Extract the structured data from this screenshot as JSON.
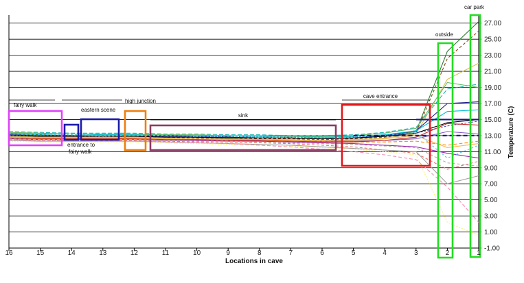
{
  "chart_data": {
    "type": "line",
    "title": "",
    "xlabel": "Locations in cave",
    "ylabel": "Temperature (C)",
    "ylim": [
      -1,
      28
    ],
    "y_ticks": [
      "27.00",
      "25.00",
      "23.00",
      "21.00",
      "19.00",
      "17.00",
      "15.00",
      "13.00",
      "11.00",
      "9.00",
      "7.00",
      "5.00",
      "3.00",
      "1.00",
      "-1.00"
    ],
    "y_tick_values": [
      27,
      25,
      23,
      21,
      19,
      17,
      15,
      13,
      11,
      9,
      7,
      5,
      3,
      1,
      -1
    ],
    "y_axis_side": "right",
    "grid": true,
    "legend": "none",
    "categories": [
      "16",
      "15",
      "14",
      "13",
      "12",
      "11",
      "10",
      "9",
      "8",
      "7",
      "6",
      "5",
      "4",
      "3",
      "2",
      "1"
    ],
    "series": [
      {
        "color": "#2e7d32",
        "values": [
          13.2,
          13.1,
          13.0,
          13.0,
          13.0,
          12.9,
          12.8,
          12.8,
          12.7,
          12.7,
          12.6,
          12.7,
          12.9,
          13.5,
          23.5,
          27.2
        ]
      },
      {
        "color": "#8b4513",
        "values": [
          13.0,
          12.9,
          12.9,
          12.8,
          12.9,
          12.8,
          12.7,
          12.7,
          12.6,
          12.6,
          12.5,
          12.6,
          12.8,
          13.3,
          22.6,
          26.0
        ]
      },
      {
        "color": "#d4c24a",
        "values": [
          12.9,
          12.8,
          12.8,
          12.8,
          12.8,
          12.7,
          12.6,
          12.6,
          12.5,
          12.5,
          12.4,
          12.5,
          12.7,
          13.2,
          20.0,
          22.0
        ]
      },
      {
        "color": "#20b2aa",
        "values": [
          13.5,
          13.4,
          13.3,
          13.3,
          13.3,
          13.2,
          13.2,
          13.1,
          13.1,
          13.0,
          13.0,
          13.1,
          13.4,
          14.0,
          18.8,
          19.4
        ]
      },
      {
        "color": "#1a1a8c",
        "values": [
          13.1,
          13.0,
          13.0,
          12.9,
          12.9,
          12.9,
          12.8,
          12.8,
          12.7,
          12.7,
          12.6,
          12.7,
          13.0,
          13.6,
          17.0,
          17.2
        ]
      },
      {
        "color": "#000000",
        "values": [
          13.0,
          12.9,
          12.9,
          12.9,
          12.9,
          12.8,
          12.8,
          12.7,
          12.7,
          12.7,
          12.6,
          12.7,
          12.9,
          13.3,
          14.6,
          15.0
        ]
      },
      {
        "color": "#3f51b5",
        "values": [
          13.0,
          13.0,
          13.0,
          12.9,
          13.0,
          12.9,
          12.9,
          12.9,
          12.8,
          12.8,
          12.8,
          12.8,
          13.0,
          13.3,
          14.2,
          14.8
        ]
      },
      {
        "color": "#7e57c2",
        "values": [
          12.8,
          12.7,
          12.7,
          12.7,
          12.7,
          12.6,
          12.6,
          12.5,
          12.5,
          12.4,
          12.3,
          12.3,
          12.4,
          12.6,
          13.5,
          13.2
        ]
      },
      {
        "color": "#ff8c00",
        "values": [
          12.7,
          12.6,
          12.6,
          12.6,
          12.6,
          12.6,
          12.5,
          12.5,
          12.4,
          12.4,
          12.3,
          12.2,
          12.2,
          12.3,
          11.8,
          12.3
        ]
      },
      {
        "color": "#00bcd4",
        "values": [
          13.3,
          13.2,
          13.2,
          13.1,
          13.1,
          13.1,
          13.0,
          13.0,
          12.9,
          12.9,
          12.8,
          12.9,
          13.1,
          13.6,
          16.0,
          16.2
        ]
      },
      {
        "color": "#9c27b0",
        "values": [
          12.6,
          12.5,
          12.5,
          12.5,
          12.5,
          12.4,
          12.4,
          12.3,
          12.3,
          12.2,
          12.1,
          12.0,
          11.8,
          11.6,
          10.8,
          10.2
        ]
      },
      {
        "color": "#e57373",
        "values": [
          12.5,
          12.4,
          12.4,
          12.4,
          12.4,
          12.3,
          12.2,
          12.2,
          12.1,
          12.0,
          11.8,
          11.6,
          11.2,
          10.8,
          8.8,
          9.8
        ]
      },
      {
        "color": "#9e9e9e",
        "values": [
          12.4,
          12.3,
          12.3,
          12.3,
          12.3,
          12.2,
          12.1,
          12.0,
          11.9,
          11.8,
          11.6,
          11.4,
          11.2,
          11.0,
          7.0,
          8.0
        ]
      },
      {
        "color": "#fff176",
        "values": [
          12.3,
          12.2,
          12.2,
          12.2,
          12.2,
          12.1,
          12.0,
          11.9,
          11.8,
          11.7,
          11.5,
          11.3,
          11.0,
          10.6,
          2.2,
          0.6
        ]
      },
      {
        "color": "#f48fb1",
        "values": [
          12.5,
          12.4,
          12.4,
          12.3,
          12.3,
          12.2,
          12.1,
          12.0,
          11.8,
          11.6,
          11.3,
          11.0,
          10.6,
          10.0,
          6.6,
          2.2
        ]
      },
      {
        "color": "#c62828",
        "values": [
          12.7,
          12.6,
          12.6,
          12.6,
          12.6,
          12.5,
          12.5,
          12.4,
          12.4,
          12.3,
          12.2,
          12.2,
          12.4,
          12.8,
          14.5,
          14.3
        ]
      },
      {
        "color": "#66bb6a",
        "values": [
          13.4,
          13.3,
          13.2,
          13.2,
          13.2,
          13.1,
          13.1,
          13.0,
          13.0,
          12.9,
          12.9,
          13.0,
          13.3,
          13.9,
          19.6,
          19.0
        ]
      },
      {
        "color": "#bcaaa4",
        "values": [
          12.6,
          12.5,
          12.5,
          12.5,
          12.5,
          12.4,
          12.3,
          12.3,
          12.2,
          12.1,
          12.0,
          11.9,
          11.7,
          11.5,
          9.6,
          9.2
        ]
      },
      {
        "color": "#ffb74d",
        "values": [
          12.8,
          12.7,
          12.7,
          12.7,
          12.7,
          12.6,
          12.6,
          12.5,
          12.5,
          12.4,
          12.4,
          12.4,
          12.6,
          13.0,
          11.5,
          12.0
        ]
      },
      {
        "color": "#4fc3f7",
        "values": [
          13.2,
          13.1,
          13.1,
          13.0,
          13.0,
          13.0,
          12.9,
          12.9,
          12.8,
          12.8,
          12.7,
          12.8,
          13.0,
          13.4,
          10.2,
          11.8
        ]
      }
    ],
    "annotations": [
      {
        "label": "fairy walk",
        "box_color": "#e040fb"
      },
      {
        "label": "entrance to fairy walk",
        "box_color": "#1a1aa8"
      },
      {
        "label": "eastern scene",
        "box_color": "#1a1aa8"
      },
      {
        "label": "high junction",
        "box_color": "#ef7d0f"
      },
      {
        "label": "sink",
        "box_color": "#8b3a62"
      },
      {
        "label": "cave entrance",
        "box_color": "#e0161b"
      },
      {
        "label": "outside",
        "box_color": "#22dd22"
      },
      {
        "label": "car park",
        "box_color": "#22dd22"
      }
    ]
  }
}
